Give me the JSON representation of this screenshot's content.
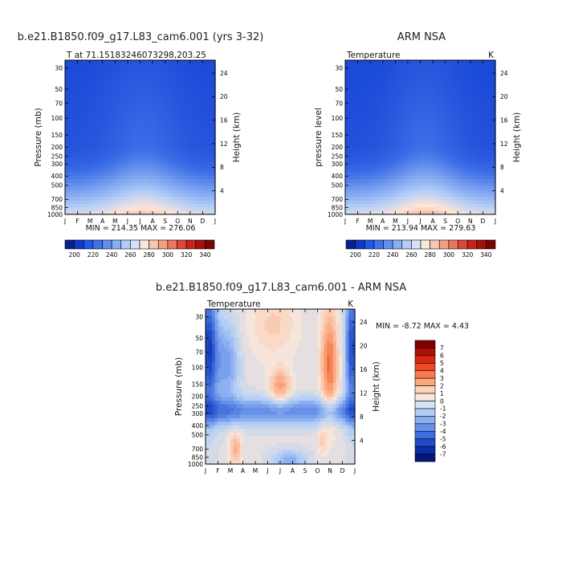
{
  "chart_data": [
    {
      "id": "model",
      "type": "heatmap",
      "title": "b.e21.B1850.f09_g17.L83_cam6.001 (yrs 3-32)",
      "subtitle_left": "T at 71.15183246073298,203.25",
      "subtitle_right": "",
      "ylabel": "Pressure (mb)",
      "ylabel_right": "Height (km)",
      "x_ticks": [
        "J",
        "F",
        "M",
        "A",
        "M",
        "J",
        "J",
        "A",
        "S",
        "O",
        "N",
        "D",
        "J"
      ],
      "y_ticks": [
        "30",
        "50",
        "70",
        "100",
        "150",
        "200",
        "250",
        "300",
        "400",
        "500",
        "700",
        "850",
        "1000"
      ],
      "y_right_ticks": [
        "24",
        "20",
        "16",
        "12",
        "8",
        "4"
      ],
      "stats": "MIN = 214.35  MAX = 276.06",
      "z_min": 214.35,
      "z_max": 276.06,
      "colorbar_labels": [
        "200",
        "220",
        "240",
        "260",
        "280",
        "300",
        "320",
        "340"
      ]
    },
    {
      "id": "obs",
      "type": "heatmap",
      "title": "ARM NSA",
      "subtitle_left": "Temperature",
      "subtitle_right": "K",
      "ylabel": "pressure level",
      "ylabel_right": "Height (km)",
      "x_ticks": [
        "J",
        "F",
        "M",
        "A",
        "M",
        "J",
        "J",
        "A",
        "S",
        "O",
        "N",
        "D",
        "J"
      ],
      "y_ticks": [
        "30",
        "50",
        "70",
        "100",
        "150",
        "200",
        "250",
        "300",
        "400",
        "500",
        "700",
        "850",
        "1000"
      ],
      "y_right_ticks": [
        "24",
        "20",
        "16",
        "12",
        "8",
        "4"
      ],
      "stats": "MIN = 213.94  MAX = 279.63",
      "z_min": 213.94,
      "z_max": 279.63,
      "colorbar_labels": [
        "200",
        "220",
        "240",
        "260",
        "280",
        "300",
        "320",
        "340"
      ]
    },
    {
      "id": "diff",
      "type": "heatmap",
      "title": "b.e21.B1850.f09_g17.L83_cam6.001 - ARM NSA",
      "subtitle_left": "Temperature",
      "subtitle_right": "K",
      "ylabel": "Pressure (mb)",
      "ylabel_right": "Height (km)",
      "x_ticks": [
        "J",
        "F",
        "M",
        "A",
        "M",
        "J",
        "J",
        "A",
        "S",
        "O",
        "N",
        "D",
        "J"
      ],
      "y_ticks": [
        "30",
        "50",
        "70",
        "100",
        "150",
        "200",
        "250",
        "300",
        "400",
        "500",
        "700",
        "850",
        "1000"
      ],
      "y_right_ticks": [
        "24",
        "20",
        "16",
        "12",
        "8",
        "4"
      ],
      "stats": "MIN =  -8.72 MAX =   4.43",
      "z_min": -8.72,
      "z_max": 4.43,
      "colorbar_labels": [
        "7",
        "6",
        "5",
        "4",
        "3",
        "2",
        "1",
        "0",
        "-1",
        "-2",
        "-3",
        "-4",
        "-5",
        "-6",
        "-7"
      ]
    }
  ],
  "colors": {
    "abs_scale": [
      "#08208f",
      "#1138c8",
      "#1f5ae6",
      "#3d72ea",
      "#5f8ff0",
      "#87adf4",
      "#b2cbf7",
      "#d4e3fa",
      "#fbe8dc",
      "#f8c7b0",
      "#f2a184",
      "#ea7560",
      "#de4839",
      "#c8231b",
      "#a30f0b",
      "#790500"
    ],
    "diff_scale": [
      "#820000",
      "#b01005",
      "#d8270f",
      "#ee4a24",
      "#f87a4c",
      "#fca77c",
      "#fdd3b7",
      "#f8e6da",
      "#d4e5fa",
      "#b0cdf6",
      "#8bb0f1",
      "#6690ea",
      "#3f6de2",
      "#1f4ccc",
      "#0d2da8",
      "#041779"
    ]
  }
}
